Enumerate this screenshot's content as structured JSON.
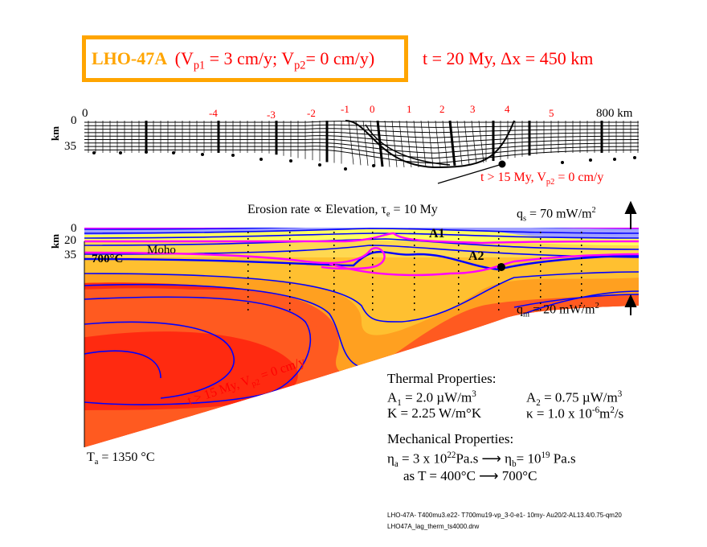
{
  "title": {
    "model": "LHO-47A",
    "velocities": "(Vp1 = 3 cm/y; Vp2= 0 cm/y)",
    "time_dx": "t = 20 My,   Δx = 450 km"
  },
  "grid_panel": {
    "x_start": "0",
    "x_end": "800 km",
    "markers": [
      "-4",
      "-3",
      "-2",
      "-1",
      "0",
      "1",
      "2",
      "3",
      "4",
      "5"
    ],
    "y_unit": "km",
    "y_ticks": [
      "0",
      "35"
    ],
    "annotation": "t > 15 My, Vp2 = 0 cm/y"
  },
  "thermal_panel": {
    "erosion": "Erosion rate ∝ Elevation, τe = 10 My",
    "qs": "qs = 70 mW/m2",
    "qm": "qm = 20 mW/m2",
    "y_unit": "km",
    "y_ticks": [
      "0",
      "20",
      "35"
    ],
    "isotherm_label": "700°C",
    "moho_label": "Moho",
    "a1_label": "A1",
    "a2_label": "A2",
    "slab_annotation": "t > 15 My, Vp2 = 0 cm/y",
    "ta": "Ta = 1350 °C"
  },
  "properties": {
    "thermal_heading": "Thermal Properties:",
    "a1": "A1 = 2.0 µW/m3",
    "a2": "A2 = 0.75 µW/m3",
    "k": "K = 2.25 W/m°K",
    "kappa": "κ = 1.0 x 10-6m2/s",
    "mechanical_heading": "Mechanical Properties:",
    "eta": "ηa = 3 x 1022Pa.s ⟶ ηb = 1019 Pa.s",
    "temp": "as T = 400°C ⟶ 700°C"
  },
  "footer": {
    "line1": "LHO-47A- T400mu3.e22- T700mu19-vp_3-0-e1- 10my- Au20/2-AL13.4/0.75-qm20",
    "line2": "LHO47A_lag_therm_ts4000.drw"
  },
  "colors": {
    "orange": "#ffa500",
    "red": "#ff0000",
    "blue": "#0000ff",
    "magenta": "#ff00ff"
  }
}
